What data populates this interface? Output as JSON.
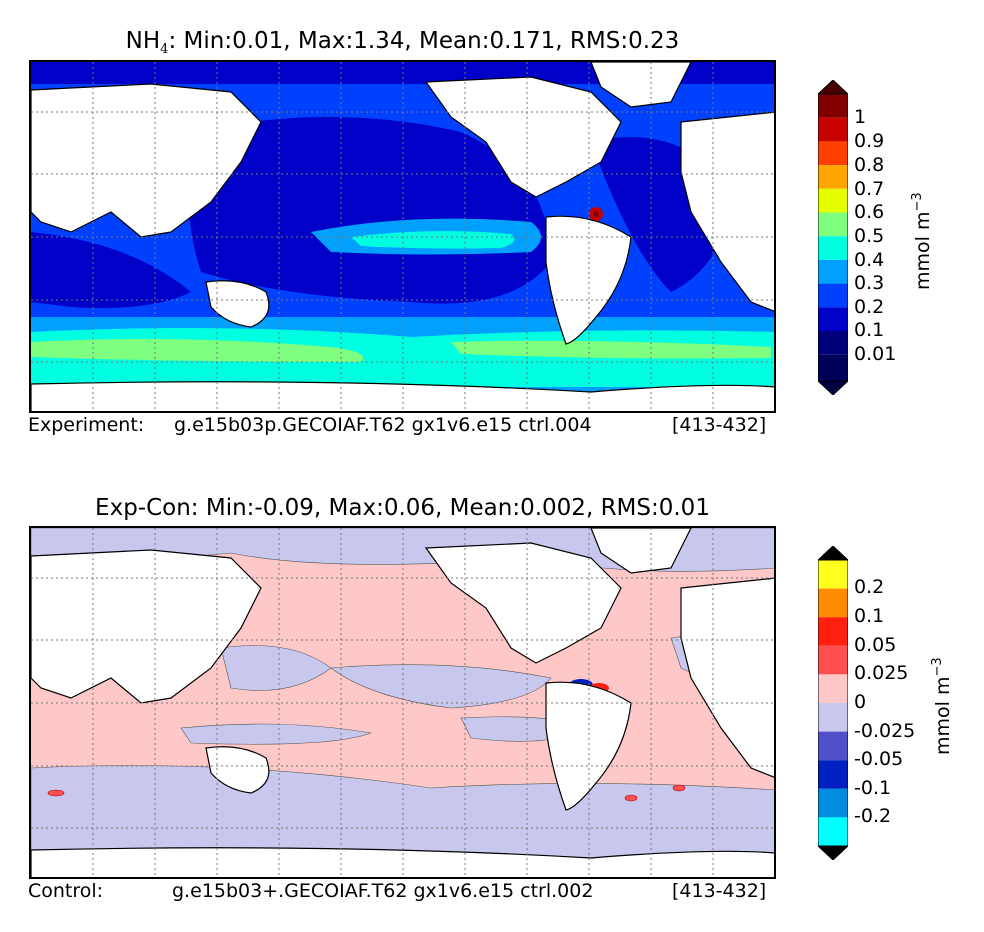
{
  "top": {
    "title_prefix": "NH",
    "title_sub": "4",
    "title_rest": ": Min:0.01, Max:1.34, Mean:0.171, RMS:0.23",
    "caption_left": "Experiment:",
    "caption_mid": "g.e15b03p.GECOIAF.T62 gx1v6.e15 ctrl.004",
    "caption_right": "[413-432]",
    "colorbar_labels": [
      "1",
      "0.9",
      "0.8",
      "0.7",
      "0.6",
      "0.5",
      "0.4",
      "0.3",
      "0.2",
      "0.1",
      "0.01"
    ],
    "colorbar_colors": [
      "#800000",
      "#c80000",
      "#ff4000",
      "#ffa500",
      "#e6ff00",
      "#7fff7f",
      "#00ffe0",
      "#00a0ff",
      "#0040ff",
      "#0000c8",
      "#00007a"
    ],
    "unit_main": "mmol m",
    "unit_sup": "−3"
  },
  "bottom": {
    "title": "Exp-Con: Min:-0.09, Max:0.06, Mean:0.002, RMS:0.01",
    "caption_left": "Control:",
    "caption_mid": "g.e15b03+.GECOIAF.T62 gx1v6.e15 ctrl.002",
    "caption_right": "[413-432]",
    "colorbar_labels": [
      "0.2",
      "0.1",
      "0.05",
      "0.025",
      "0",
      "-0.025",
      "-0.05",
      "-0.1",
      "-0.2"
    ],
    "colorbar_colors": [
      "#ffff20",
      "#ff8c00",
      "#ff2010",
      "#ff5050",
      "#ffc8c8",
      "#c8c8ee",
      "#5050c8",
      "#0020c0",
      "#008ce0",
      "#00ffff"
    ],
    "unit_main": "mmol m",
    "unit_sup": "−3"
  },
  "colors": {
    "land": "#ffffff",
    "grid": "#777777"
  }
}
